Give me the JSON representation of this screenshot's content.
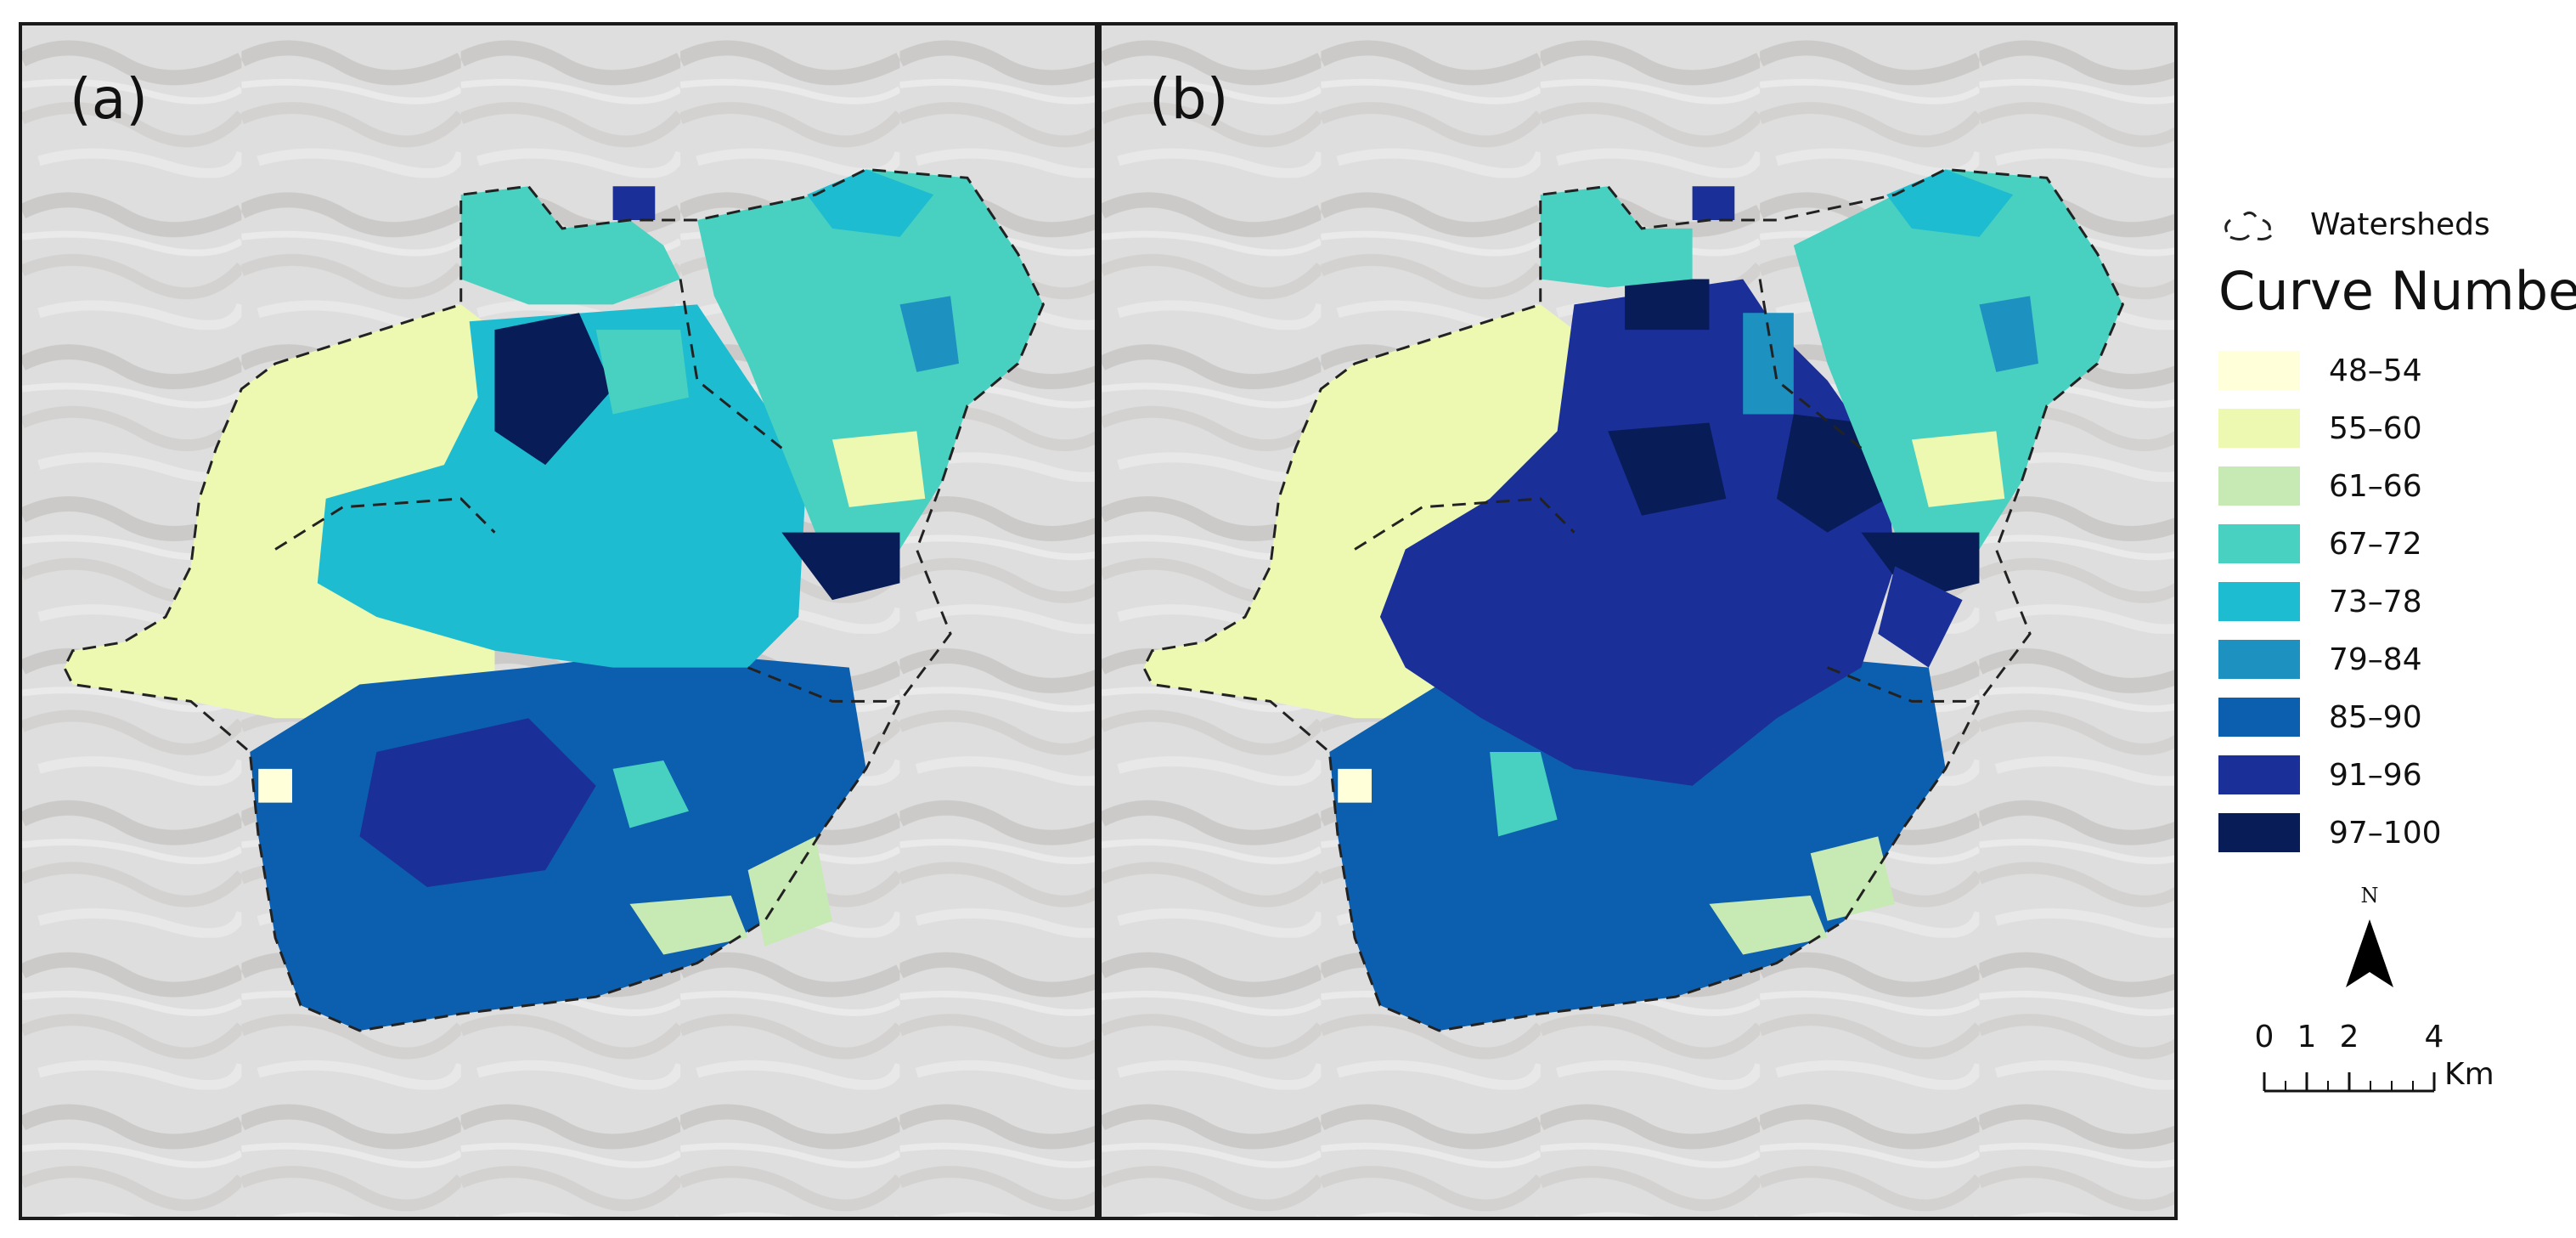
{
  "panels": [
    {
      "label": "(a)"
    },
    {
      "label": "(b)"
    }
  ],
  "legend": {
    "watersheds_label": "Watersheds",
    "title": "Curve Number",
    "classes": [
      {
        "label": "48–54",
        "color": "#ffffd9"
      },
      {
        "label": "55–60",
        "color": "#edf8b1"
      },
      {
        "label": "61–66",
        "color": "#c7e9b4"
      },
      {
        "label": "67–72",
        "color": "#48d1c0"
      },
      {
        "label": "73–78",
        "color": "#1ebcd0"
      },
      {
        "label": "79–84",
        "color": "#1d91c0"
      },
      {
        "label": "85–90",
        "color": "#0c5fae"
      },
      {
        "label": "91–96",
        "color": "#1a2f98"
      },
      {
        "label": "97–100",
        "color": "#081d58"
      }
    ]
  },
  "north_arrow": {
    "label": "N"
  },
  "scale_bar": {
    "ticks": [
      "0",
      "1",
      "2",
      "4"
    ],
    "unit": "Km"
  }
}
